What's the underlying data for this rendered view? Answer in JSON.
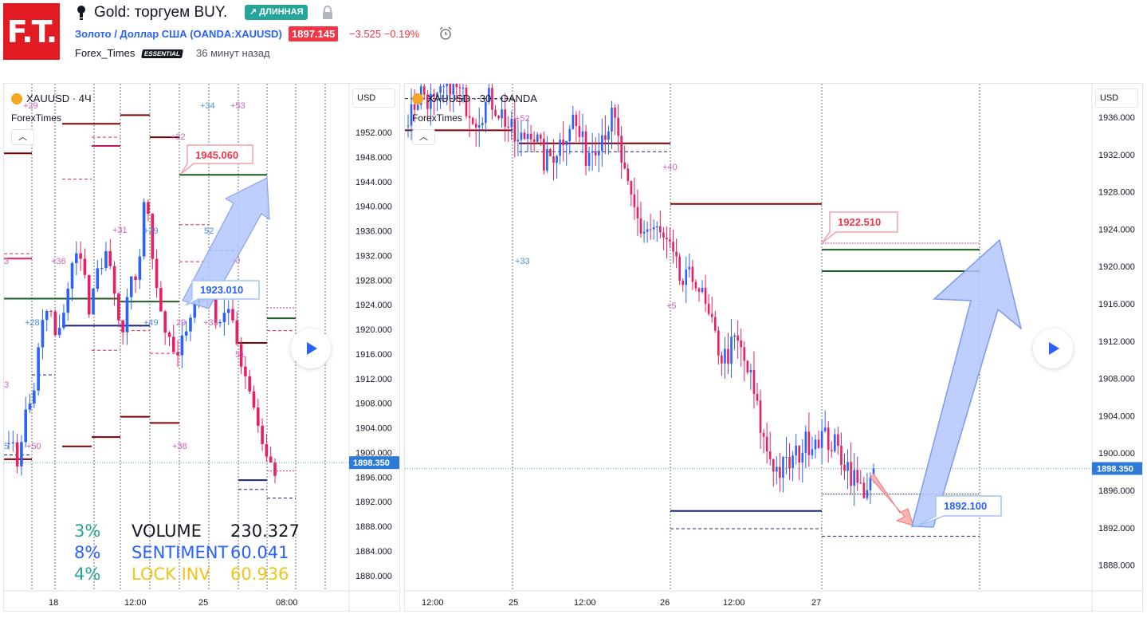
{
  "header": {
    "logo_text": "F.T.",
    "idea_title": "Gold: торгуем BUY.",
    "badge": "↗ ДЛИННАЯ",
    "symbol_line": "Золото / Доллар США (OANDA:XAUUSD)",
    "price": "1897.145",
    "change": "−3.525  −0.19%",
    "author": "Forex_Times",
    "author_badge": "ESSENTIAL",
    "time_ago": "36 минут назад"
  },
  "left_chart": {
    "legend": "XAUUSD · 4Ч",
    "indicator": "ForexTimes",
    "currency": "USD",
    "price_ticks": [
      "1952.000",
      "1948.000",
      "1944.000",
      "1940.000",
      "1936.000",
      "1932.000",
      "1928.000",
      "1924.000",
      "1920.000",
      "1916.000",
      "1912.000",
      "1908.000",
      "1904.000",
      "1900.000",
      "1896.000",
      "1892.000",
      "1888.000",
      "1884.000",
      "1880.000"
    ],
    "last_price": "1898.350",
    "time_ticks": [
      "18",
      "12:00",
      "25",
      "08:00"
    ],
    "callout_top": "1945.060",
    "callout_mid": "1923.010",
    "level_labels": [
      "+29",
      "+34",
      "+53",
      "+32",
      "52",
      "40",
      "+31",
      "+29",
      "+36",
      "3",
      "+49",
      "29",
      "+33",
      "+28",
      "51",
      "+38",
      "5",
      "+50",
      "3"
    ],
    "stats": [
      {
        "pct": "3%",
        "label": "VOLUME",
        "value": "230.327",
        "color": "#26a69a"
      },
      {
        "pct": "8%",
        "label": "SENTIMENT",
        "value": "60.041",
        "color": "#2962ff"
      },
      {
        "pct": "4%",
        "label": "LOCK INV",
        "value": "60.936",
        "color": "#26a69a"
      }
    ]
  },
  "right_chart": {
    "legend": "XAUUSD · 30 · OANDA",
    "indicator": "ForexTimes",
    "currency": "USD",
    "price_ticks": [
      "1936.000",
      "1932.000",
      "1928.000",
      "1924.000",
      "1920.000",
      "1916.000",
      "1912.000",
      "1908.000",
      "1904.000",
      "1900.000",
      "1896.000",
      "1892.000",
      "1888.000"
    ],
    "last_price": "1898.350",
    "time_ticks": [
      "12:00",
      "25",
      "12:00",
      "26",
      "12:00",
      "27"
    ],
    "callout_top": "1922.510",
    "callout_bottom": "1892.100",
    "level_labels": [
      "+52",
      "+40",
      "+33",
      "+5"
    ]
  },
  "colors": {
    "up": "#2962ff",
    "down": "#e91e63",
    "level_dark": "#800000",
    "level_green": "#1b5e20",
    "level_blue": "#1a237e",
    "arrow_fill": "#b3c6ff",
    "stats_label": "#131722",
    "stats_label_blue": "#2962ff",
    "stats_label_gold": "#f0c419"
  }
}
